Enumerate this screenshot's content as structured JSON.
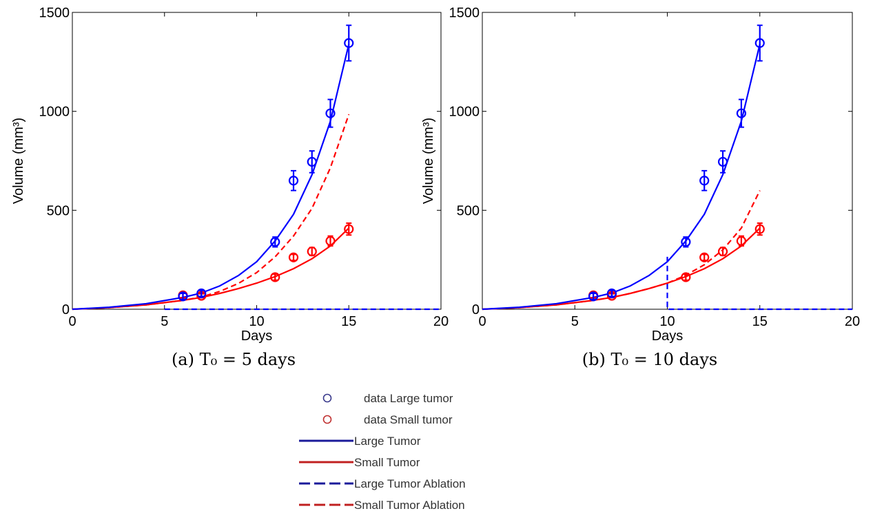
{
  "chart_data": [
    {
      "type": "line",
      "caption": "(a) T₀ = 5 days",
      "xlabel": "Days",
      "ylabel": "Volume (mm³)",
      "xlim": [
        0,
        20
      ],
      "ylim": [
        0,
        1500
      ],
      "xticks": [
        0,
        5,
        10,
        15,
        20
      ],
      "yticks": [
        0,
        500,
        1000,
        1500
      ],
      "grid": false,
      "data_large": {
        "name": "data Large tumor",
        "color": "#0000ff",
        "x": [
          6,
          7,
          11,
          12,
          13,
          14,
          15
        ],
        "y": [
          65,
          80,
          340,
          650,
          745,
          990,
          1345
        ],
        "err": [
          15,
          15,
          25,
          50,
          55,
          70,
          90
        ]
      },
      "data_small": {
        "name": "data Small tumor",
        "color": "#ff0000",
        "x": [
          6,
          7,
          11,
          12,
          13,
          14,
          15
        ],
        "y": [
          70,
          68,
          162,
          262,
          292,
          345,
          405
        ],
        "err": [
          12,
          10,
          15,
          15,
          20,
          25,
          30
        ]
      },
      "fit_large": {
        "name": "Large Tumor",
        "color": "#0000ff",
        "style": "solid",
        "x": [
          0,
          2,
          4,
          6,
          7,
          8,
          9,
          10,
          11,
          12,
          13,
          14,
          15
        ],
        "y": [
          0,
          10,
          28,
          60,
          82,
          118,
          170,
          240,
          345,
          480,
          680,
          950,
          1340
        ]
      },
      "fit_small": {
        "name": "Small Tumor",
        "color": "#ff0000",
        "style": "solid",
        "x": [
          0,
          2,
          4,
          6,
          7,
          8,
          9,
          10,
          11,
          12,
          13,
          14,
          15
        ],
        "y": [
          0,
          8,
          22,
          45,
          60,
          80,
          104,
          132,
          165,
          205,
          255,
          320,
          410
        ]
      },
      "ablation_large": {
        "name": "Large Tumor Ablation",
        "color": "#0000ff",
        "style": "dashed",
        "x": [
          5,
          5,
          20
        ],
        "y": [
          0,
          0,
          0
        ]
      },
      "ablation_small": {
        "name": "Small Tumor Ablation",
        "color": "#ff0000",
        "style": "dashed",
        "x": [
          0,
          2,
          4,
          6,
          7,
          8,
          9,
          10,
          11,
          12,
          13,
          14,
          15
        ],
        "y": [
          0,
          8,
          22,
          45,
          62,
          90,
          130,
          185,
          265,
          370,
          510,
          715,
          985
        ]
      }
    },
    {
      "type": "line",
      "caption": "(b) T₀ = 10 days",
      "xlabel": "Days",
      "ylabel": "Volume (mm³)",
      "xlim": [
        0,
        20
      ],
      "ylim": [
        0,
        1500
      ],
      "xticks": [
        0,
        5,
        10,
        15,
        20
      ],
      "yticks": [
        0,
        500,
        1000,
        1500
      ],
      "grid": false,
      "data_large": {
        "name": "data Large tumor",
        "color": "#0000ff",
        "x": [
          6,
          7,
          11,
          12,
          13,
          14,
          15
        ],
        "y": [
          65,
          80,
          340,
          650,
          745,
          990,
          1345
        ],
        "err": [
          15,
          15,
          25,
          50,
          55,
          70,
          90
        ]
      },
      "data_small": {
        "name": "data Small tumor",
        "color": "#ff0000",
        "x": [
          6,
          7,
          11,
          12,
          13,
          14,
          15
        ],
        "y": [
          70,
          68,
          162,
          262,
          292,
          345,
          405
        ],
        "err": [
          12,
          10,
          15,
          15,
          20,
          25,
          30
        ]
      },
      "fit_large": {
        "name": "Large Tumor",
        "color": "#0000ff",
        "style": "solid",
        "x": [
          0,
          2,
          4,
          6,
          7,
          8,
          9,
          10,
          11,
          12,
          13,
          14,
          15
        ],
        "y": [
          0,
          10,
          28,
          60,
          82,
          118,
          170,
          240,
          345,
          480,
          680,
          950,
          1340
        ]
      },
      "fit_small": {
        "name": "Small Tumor",
        "color": "#ff0000",
        "style": "solid",
        "x": [
          0,
          2,
          4,
          6,
          7,
          8,
          9,
          10,
          11,
          12,
          13,
          14,
          15
        ],
        "y": [
          0,
          8,
          22,
          45,
          60,
          80,
          104,
          132,
          165,
          205,
          255,
          320,
          410
        ]
      },
      "ablation_large": {
        "name": "Large Tumor Ablation",
        "color": "#0000ff",
        "style": "dashed",
        "x": [
          10,
          10,
          20
        ],
        "y": [
          265,
          0,
          0
        ]
      },
      "ablation_small": {
        "name": "Small Tumor Ablation",
        "color": "#ff0000",
        "style": "dashed",
        "x": [
          0,
          2,
          4,
          6,
          7,
          8,
          9,
          10,
          11,
          12,
          13,
          14,
          15
        ],
        "y": [
          0,
          8,
          22,
          45,
          60,
          80,
          104,
          132,
          172,
          225,
          300,
          410,
          600
        ]
      }
    }
  ],
  "legend": {
    "entries": [
      {
        "label": "data Large tumor",
        "kind": "marker",
        "color": "#3a3a8c"
      },
      {
        "label": "data Small tumor",
        "kind": "marker",
        "color": "#c03030"
      },
      {
        "label": "Large Tumor",
        "kind": "solid",
        "color": "#1a1a9a"
      },
      {
        "label": "Small Tumor",
        "kind": "solid",
        "color": "#c02020"
      },
      {
        "label": "Large Tumor Ablation",
        "kind": "dashed",
        "color": "#1a1a9a"
      },
      {
        "label": "Small Tumor Ablation",
        "kind": "dashed",
        "color": "#c02020"
      }
    ]
  }
}
